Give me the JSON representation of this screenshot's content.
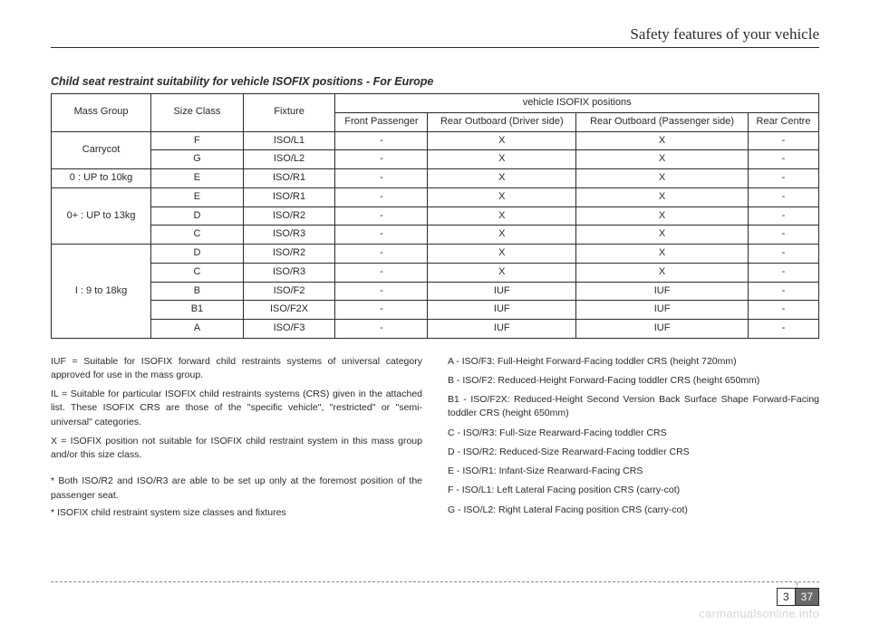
{
  "header": {
    "title": "Safety features of your vehicle"
  },
  "table": {
    "title": "Child seat restraint suitability for vehicle ISOFIX positions - For Europe",
    "head": {
      "mass_group": "Mass Group",
      "size_class": "Size Class",
      "fixture": "Fixture",
      "positions_title": "vehicle  ISOFIX positions",
      "front_passenger": "Front Passenger",
      "rear_driver": "Rear Outboard (Driver side)",
      "rear_passenger": "Rear Outboard (Passenger side)",
      "rear_centre": "Rear Centre"
    },
    "rows": [
      {
        "group": "Carrycot",
        "rowspan": 2,
        "size": "F",
        "fixture": "ISO/L1",
        "fp": "-",
        "rd": "X",
        "rp": "X",
        "rc": "-"
      },
      {
        "size": "G",
        "fixture": "ISO/L2",
        "fp": "-",
        "rd": "X",
        "rp": "X",
        "rc": "-"
      },
      {
        "group": "0 : UP to 10kg",
        "rowspan": 1,
        "size": "E",
        "fixture": "ISO/R1",
        "fp": "-",
        "rd": "X",
        "rp": "X",
        "rc": "-"
      },
      {
        "group": "0+ : UP to 13kg",
        "rowspan": 3,
        "size": "E",
        "fixture": "ISO/R1",
        "fp": "-",
        "rd": "X",
        "rp": "X",
        "rc": "-"
      },
      {
        "size": "D",
        "fixture": "ISO/R2",
        "fp": "-",
        "rd": "X",
        "rp": "X",
        "rc": "-"
      },
      {
        "size": "C",
        "fixture": "ISO/R3",
        "fp": "-",
        "rd": "X",
        "rp": "X",
        "rc": "-"
      },
      {
        "group": "I : 9 to 18kg",
        "rowspan": 5,
        "size": "D",
        "fixture": "ISO/R2",
        "fp": "-",
        "rd": "X",
        "rp": "X",
        "rc": "-"
      },
      {
        "size": "C",
        "fixture": "ISO/R3",
        "fp": "-",
        "rd": "X",
        "rp": "X",
        "rc": "-"
      },
      {
        "size": "B",
        "fixture": "ISO/F2",
        "fp": "-",
        "rd": "IUF",
        "rp": "IUF",
        "rc": "-"
      },
      {
        "size": "B1",
        "fixture": "ISO/F2X",
        "fp": "-",
        "rd": "IUF",
        "rp": "IUF",
        "rc": "-"
      },
      {
        "size": "A",
        "fixture": "ISO/F3",
        "fp": "-",
        "rd": "IUF",
        "rp": "IUF",
        "rc": "-"
      }
    ]
  },
  "left_defs": {
    "iuf": "IUF = Suitable for ISOFIX forward child restraints systems of universal category approved for use in the mass group.",
    "il": "IL = Suitable for particular ISOFIX child restraints systems (CRS) given in the attached list. These ISOFIX CRS are those of the \"specific vehicle\", \"restricted\" or \"semi-universal\" categories.",
    "x": "X = ISOFIX position not suitable for ISOFIX child restraint system in this mass group and/or this size class.",
    "note1": "* Both ISO/R2 and ISO/R3 are able to be set up only at the foremost position of the passenger seat.",
    "note2": "* ISOFIX child restraint system size classes and fixtures"
  },
  "right_defs": {
    "a": "A - ISO/F3: Full-Height Forward-Facing toddler CRS (height 720mm)",
    "b": "B - ISO/F2: Reduced-Height Forward-Facing toddler CRS (height 650mm)",
    "b1": "B1 - ISO/F2X: Reduced-Height Second Version Back Surface Shape Forward-Facing toddler CRS (height 650mm)",
    "c": "C - ISO/R3: Full-Size Rearward-Facing toddler CRS",
    "d": "D - ISO/R2: Reduced-Size Rearward-Facing toddler CRS",
    "e": "E - ISO/R1: Infant-Size Rearward-Facing CRS",
    "f": "F - ISO/L1: Left Lateral Facing position CRS (carry-cot)",
    "g": "G - ISO/L2: Right Lateral Facing position CRS (carry-cot)"
  },
  "page": {
    "section": "3",
    "number": "37"
  },
  "watermark": "carmanualsonline.info"
}
